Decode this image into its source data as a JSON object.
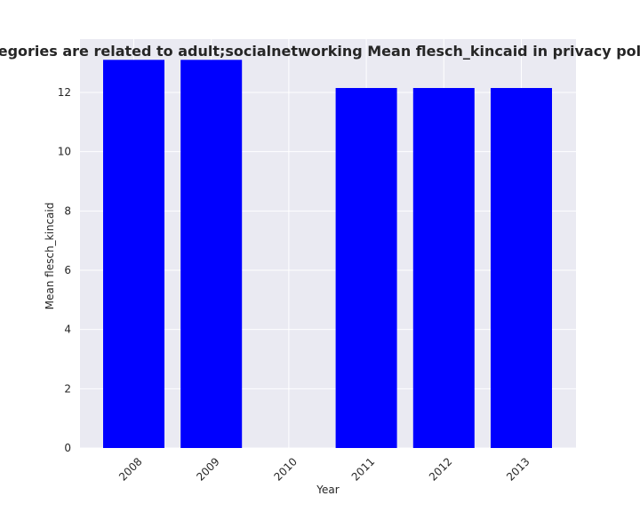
{
  "chart_data": {
    "type": "bar",
    "title": "hen categories are related to adult;socialnetworking Mean flesch_kincaid in privacy policies by",
    "xlabel": "Year",
    "ylabel": "Mean flesch_kincaid",
    "categories": [
      "2008",
      "2009",
      "2010",
      "2011",
      "2012",
      "2013"
    ],
    "values": [
      13.1,
      13.1,
      0,
      12.15,
      12.15,
      12.15
    ],
    "ylim": [
      0,
      13.8
    ],
    "yticks": [
      "0",
      "2",
      "4",
      "6",
      "8",
      "10",
      "12"
    ],
    "grid": true,
    "colors": {
      "bar": "#0000ff",
      "plot_bg": "#eaeaf2",
      "grid": "#ffffff",
      "text": "#262626"
    }
  }
}
